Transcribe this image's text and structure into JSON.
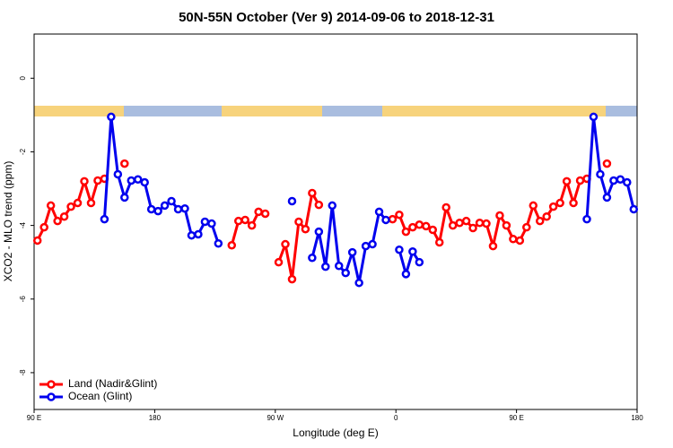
{
  "chart_data": {
    "type": "line",
    "title": "50N-55N October (Ver 9)   2014-09-06 to 2018-12-31",
    "xlabel": "Longitude (deg E)",
    "ylabel": "XCO2 - MLO trend (ppm)",
    "xlim": [
      90,
      540
    ],
    "ylim": [
      -9.0,
      1.2
    ],
    "xticks": [
      {
        "value": 90,
        "label": "90 E"
      },
      {
        "value": 180,
        "label": "180"
      },
      {
        "value": 270,
        "label": "90 W"
      },
      {
        "value": 360,
        "label": "0"
      },
      {
        "value": 450,
        "label": "90 E"
      },
      {
        "value": 540,
        "label": "180"
      }
    ],
    "yticks": [
      0,
      -2,
      -4,
      -6,
      -8
    ],
    "legend": "lower left",
    "series": [
      {
        "name": "Land (Nadir&Glint)",
        "color": "#ff0000",
        "x": [
          92.5,
          97.5,
          102.5,
          107.5,
          112.5,
          117.5,
          122.5,
          127.5,
          132.5,
          137.5,
          142.5,
          147.5,
          157.5,
          162.5,
          237.5,
          242.5,
          247.5,
          252.5,
          257.5,
          262.5,
          267.5,
          272.5,
          277.5,
          282.5,
          287.5,
          292.5,
          297.5,
          302.5,
          307.5,
          357.5,
          362.5,
          367.5,
          372.5,
          377.5,
          382.5,
          387.5,
          392.5,
          397.5,
          402.5,
          407.5,
          412.5,
          417.5,
          422.5,
          427.5,
          432.5,
          437.5,
          442.5,
          447.5,
          452.5,
          457.5,
          462.5,
          467.5,
          472.5,
          477.5,
          482.5,
          487.5,
          492.5,
          497.5,
          502.5,
          507.5,
          517.5
        ],
        "values": [
          -4.41,
          -4.05,
          -3.46,
          -3.88,
          -3.76,
          -3.49,
          -3.39,
          -2.8,
          -3.39,
          -2.78,
          -2.73,
          null,
          -2.32,
          null,
          -4.54,
          -3.88,
          -3.85,
          -4.0,
          -3.63,
          -3.68,
          null,
          -5.0,
          -4.51,
          -5.46,
          -3.9,
          -4.1,
          -3.12,
          -3.44,
          null,
          -3.83,
          -3.71,
          -4.17,
          -4.05,
          -3.98,
          -4.02,
          -4.12,
          -4.46,
          -3.51,
          -4.0,
          -3.93,
          -3.88,
          -4.07,
          -3.93,
          -3.95,
          -4.56,
          -3.73,
          -4.0,
          -4.37,
          -4.41,
          -4.05,
          -3.46,
          -3.88,
          -3.76,
          -3.49,
          -3.39,
          -2.8,
          -3.39,
          -2.78,
          -2.73,
          null,
          -2.32
        ]
      },
      {
        "name": "Ocean (Glint)",
        "color": "#0000ee",
        "x": [
          142.5,
          147.5,
          152.5,
          157.5,
          162.5,
          167.5,
          172.5,
          177.5,
          182.5,
          187.5,
          192.5,
          197.5,
          202.5,
          207.5,
          212.5,
          217.5,
          222.5,
          227.5,
          232.5,
          282.5,
          287.5,
          297.5,
          302.5,
          307.5,
          312.5,
          317.5,
          322.5,
          327.5,
          332.5,
          337.5,
          342.5,
          347.5,
          352.5,
          357.5,
          362.5,
          367.5,
          372.5,
          377.5,
          382.5,
          502.5,
          507.5,
          512.5,
          517.5,
          522.5,
          527.5,
          532.5,
          537.5
        ],
        "values": [
          -3.83,
          -1.05,
          -2.61,
          -3.24,
          -2.78,
          -2.75,
          -2.83,
          -3.56,
          -3.61,
          -3.46,
          -3.34,
          -3.56,
          -3.54,
          -4.27,
          -4.24,
          -3.9,
          -3.95,
          -4.49,
          null,
          -3.34,
          null,
          -4.88,
          -4.17,
          -5.12,
          -3.46,
          -5.1,
          -5.29,
          -4.73,
          -5.56,
          -4.56,
          -4.51,
          -3.63,
          -3.85,
          null,
          -4.66,
          -5.32,
          -4.71,
          -5.0,
          null,
          -3.83,
          -1.05,
          -2.61,
          -3.24,
          -2.78,
          -2.75,
          -2.83,
          -3.56
        ]
      }
    ]
  }
}
